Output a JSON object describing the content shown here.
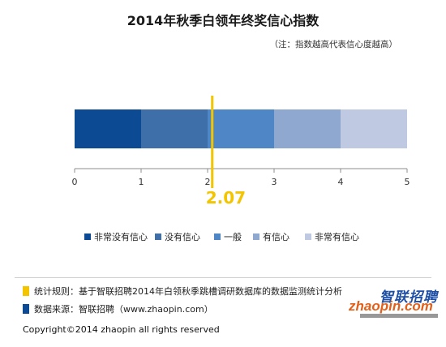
{
  "chart_data": {
    "type": "bar",
    "title": "2014年秋季白领年终奖信心指数",
    "subtitle": "（注：指数越高代表信心度越高）",
    "segments": [
      {
        "name": "非常没有信心",
        "start": 0,
        "end": 1,
        "color": "#0d4a94"
      },
      {
        "name": "没有信心",
        "start": 1,
        "end": 2,
        "color": "#3e6fa8"
      },
      {
        "name": "一般",
        "start": 2,
        "end": 3,
        "color": "#4f86c5"
      },
      {
        "name": "有信心",
        "start": 3,
        "end": 4,
        "color": "#8fa8d0"
      },
      {
        "name": "非常有信心",
        "start": 4,
        "end": 5,
        "color": "#bfcae2"
      }
    ],
    "x_ticks": [
      "0",
      "1",
      "2",
      "3",
      "4",
      "5"
    ],
    "xlim": [
      0,
      5
    ],
    "marker": {
      "value": 2.07,
      "label": "2.07",
      "color": "#f2c500"
    },
    "legend_position": "bottom",
    "grid": false
  },
  "footer": {
    "rule_text": "统计规则：基于智联招聘2014年白领秋季跳槽调研数据库的数据监测统计分析",
    "rule_color": "#f2c500",
    "source_text": "数据来源：智联招聘（www.zhaopin.com）",
    "source_color": "#0d4a94",
    "copyright": "Copyright©2014 zhaopin all rights reserved"
  },
  "logo": {
    "cn": "智联招聘",
    "en": "zhaopin.com",
    "brand_blue": "#1d4fa6",
    "brand_orange": "#e2601a"
  }
}
